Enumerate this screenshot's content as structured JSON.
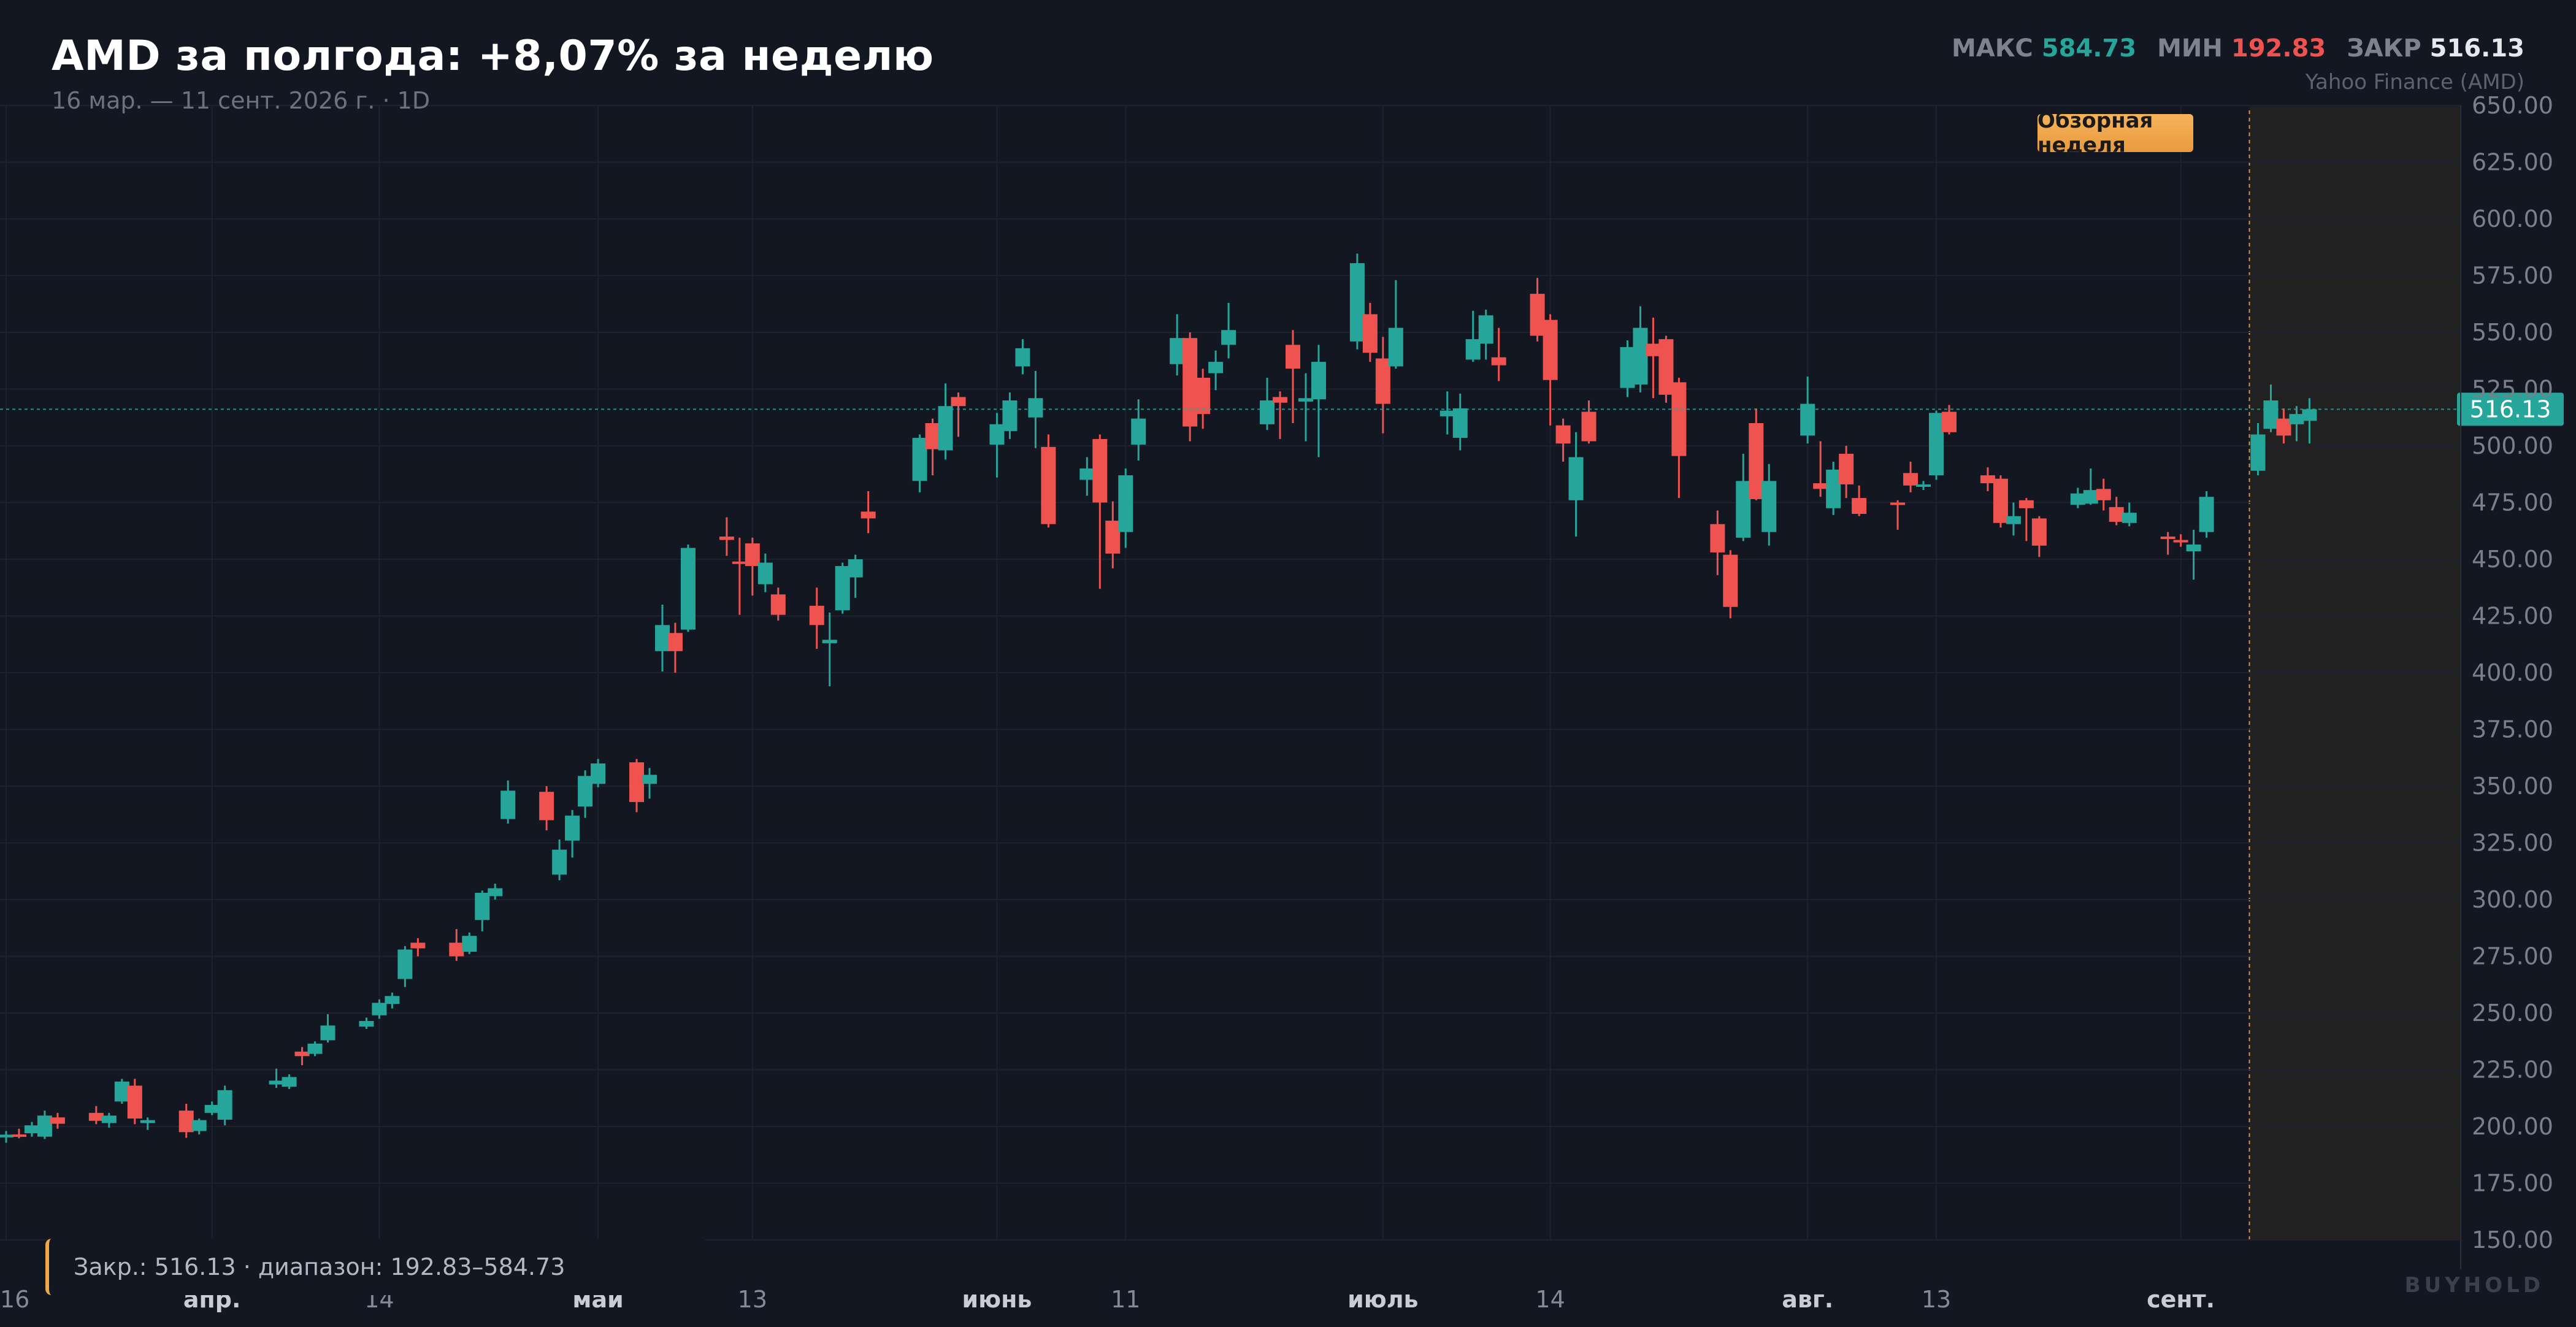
{
  "header": {
    "title": "AMD за полгода: +8,07% за неделю",
    "subtitle": "16 мар. — 11 сент. 2026 г. · 1D",
    "stats": {
      "max_label": "МАКС",
      "max_value": "584.73",
      "min_label": "МИН",
      "min_value": "192.83",
      "close_label": "ЗАКР",
      "close_value": "516.13"
    },
    "source": "Yahoo Finance (AMD)"
  },
  "highlight": {
    "label": "Обзорная неделя",
    "start_date": "2026-09-07",
    "end_date": "2026-09-11"
  },
  "footer": {
    "summary": "Закр.: 516.13 · диапазон: 192.83–584.73",
    "brand": "BUYHOLD"
  },
  "colors": {
    "background": "#131722",
    "up": "#26a69a",
    "down": "#ef5350",
    "grid": "#1e2230",
    "accent": "#f0a746",
    "axis_text": "#7a7f8c"
  },
  "chart_data": {
    "type": "candlestick",
    "ticker": "AMD",
    "interval": "1D",
    "ylim": [
      150,
      650
    ],
    "y_ticks": [
      "150.00",
      "175.00",
      "200.00",
      "225.00",
      "250.00",
      "275.00",
      "300.00",
      "325.00",
      "350.00",
      "375.00",
      "400.00",
      "425.00",
      "450.00",
      "475.00",
      "500.00",
      "525.00",
      "550.00",
      "575.00",
      "600.00",
      "625.00",
      "650.00"
    ],
    "x_ticks": [
      {
        "date": "2026-03-16",
        "label": "16",
        "bold": false
      },
      {
        "date": "2026-04-01",
        "label": "апр.",
        "bold": true
      },
      {
        "date": "2026-04-14",
        "label": "14",
        "bold": false
      },
      {
        "date": "2026-05-01",
        "label": "май",
        "bold": true
      },
      {
        "date": "2026-05-13",
        "label": "13",
        "bold": false
      },
      {
        "date": "2026-06-01",
        "label": "июнь",
        "bold": true
      },
      {
        "date": "2026-06-11",
        "label": "11",
        "bold": false
      },
      {
        "date": "2026-07-01",
        "label": "июль",
        "bold": true
      },
      {
        "date": "2026-07-14",
        "label": "14",
        "bold": false
      },
      {
        "date": "2026-08-03",
        "label": "авг.",
        "bold": true
      },
      {
        "date": "2026-08-13",
        "label": "13",
        "bold": false
      },
      {
        "date": "2026-09-01",
        "label": "сент.",
        "bold": true
      }
    ],
    "last_price": 516.13,
    "last_price_label": "516.13",
    "candles": [
      {
        "d": "2026-03-16",
        "o": 195.2,
        "h": 198.0,
        "l": 192.83,
        "c": 196.4
      },
      {
        "d": "2026-03-17",
        "o": 196.5,
        "h": 199.0,
        "l": 194.8,
        "c": 196.2
      },
      {
        "d": "2026-03-18",
        "o": 197.0,
        "h": 202.0,
        "l": 195.5,
        "c": 200.5
      },
      {
        "d": "2026-03-19",
        "o": 195.5,
        "h": 207.0,
        "l": 194.5,
        "c": 204.8
      },
      {
        "d": "2026-03-20",
        "o": 204.0,
        "h": 206.0,
        "l": 199.0,
        "c": 201.2
      },
      {
        "d": "2026-03-23",
        "o": 206.0,
        "h": 209.0,
        "l": 201.0,
        "c": 202.5
      },
      {
        "d": "2026-03-24",
        "o": 201.5,
        "h": 206.0,
        "l": 199.5,
        "c": 204.8
      },
      {
        "d": "2026-03-25",
        "o": 211.0,
        "h": 221.0,
        "l": 210.0,
        "c": 219.8
      },
      {
        "d": "2026-03-26",
        "o": 218.0,
        "h": 221.0,
        "l": 201.0,
        "c": 203.5
      },
      {
        "d": "2026-03-27",
        "o": 201.5,
        "h": 204.0,
        "l": 198.5,
        "c": 202.8
      },
      {
        "d": "2026-03-30",
        "o": 207.0,
        "h": 210.0,
        "l": 195.0,
        "c": 197.5
      },
      {
        "d": "2026-03-31",
        "o": 198.0,
        "h": 203.5,
        "l": 196.5,
        "c": 202.8
      },
      {
        "d": "2026-04-01",
        "o": 206.0,
        "h": 211.0,
        "l": 205.0,
        "c": 209.5
      },
      {
        "d": "2026-04-02",
        "o": 203.0,
        "h": 218.0,
        "l": 200.5,
        "c": 216.0
      },
      {
        "d": "2026-04-06",
        "o": 218.5,
        "h": 225.5,
        "l": 217.0,
        "c": 220.2
      },
      {
        "d": "2026-04-07",
        "o": 217.5,
        "h": 223.0,
        "l": 216.5,
        "c": 221.8
      },
      {
        "d": "2026-04-08",
        "o": 233.0,
        "h": 235.0,
        "l": 227.0,
        "c": 231.0
      },
      {
        "d": "2026-04-09",
        "o": 232.0,
        "h": 237.5,
        "l": 231.0,
        "c": 236.5
      },
      {
        "d": "2026-04-10",
        "o": 238.0,
        "h": 249.5,
        "l": 237.0,
        "c": 244.5
      },
      {
        "d": "2026-04-13",
        "o": 244.0,
        "h": 248.0,
        "l": 243.0,
        "c": 246.5
      },
      {
        "d": "2026-04-14",
        "o": 249.0,
        "h": 256.0,
        "l": 247.5,
        "c": 254.5
      },
      {
        "d": "2026-04-15",
        "o": 254.0,
        "h": 259.0,
        "l": 252.0,
        "c": 257.5
      },
      {
        "d": "2026-04-16",
        "o": 265.0,
        "h": 279.5,
        "l": 261.5,
        "c": 278.0
      },
      {
        "d": "2026-04-17",
        "o": 281.0,
        "h": 283.0,
        "l": 275.0,
        "c": 278.5
      },
      {
        "d": "2026-04-20",
        "o": 281.0,
        "h": 287.0,
        "l": 273.0,
        "c": 275.0
      },
      {
        "d": "2026-04-21",
        "o": 277.0,
        "h": 285.5,
        "l": 276.0,
        "c": 284.0
      },
      {
        "d": "2026-04-22",
        "o": 291.0,
        "h": 304.0,
        "l": 286.0,
        "c": 303.0
      },
      {
        "d": "2026-04-23",
        "o": 301.5,
        "h": 307.0,
        "l": 300.0,
        "c": 305.0
      },
      {
        "d": "2026-04-24",
        "o": 335.5,
        "h": 352.5,
        "l": 333.5,
        "c": 348.0
      },
      {
        "d": "2026-04-27",
        "o": 347.5,
        "h": 350.0,
        "l": 330.5,
        "c": 335.0
      },
      {
        "d": "2026-04-28",
        "o": 311.0,
        "h": 326.5,
        "l": 308.5,
        "c": 322.0
      },
      {
        "d": "2026-04-29",
        "o": 326.0,
        "h": 339.5,
        "l": 318.5,
        "c": 337.0
      },
      {
        "d": "2026-04-30",
        "o": 341.0,
        "h": 357.0,
        "l": 336.0,
        "c": 354.5
      },
      {
        "d": "2026-05-01",
        "o": 351.0,
        "h": 362.0,
        "l": 349.5,
        "c": 360.0
      },
      {
        "d": "2026-05-04",
        "o": 360.5,
        "h": 362.0,
        "l": 338.5,
        "c": 343.0
      },
      {
        "d": "2026-05-05",
        "o": 351.0,
        "h": 358.0,
        "l": 344.5,
        "c": 355.0
      },
      {
        "d": "2026-05-06",
        "o": 409.5,
        "h": 430.0,
        "l": 400.5,
        "c": 421.0
      },
      {
        "d": "2026-05-07",
        "o": 417.5,
        "h": 422.0,
        "l": 400.0,
        "c": 409.5
      },
      {
        "d": "2026-05-08",
        "o": 419.0,
        "h": 456.5,
        "l": 418.0,
        "c": 455.0
      },
      {
        "d": "2026-05-11",
        "o": 460.0,
        "h": 468.5,
        "l": 451.5,
        "c": 458.5
      },
      {
        "d": "2026-05-12",
        "o": 449.0,
        "h": 459.5,
        "l": 425.5,
        "c": 448.5
      },
      {
        "d": "2026-05-13",
        "o": 457.0,
        "h": 459.5,
        "l": 434.0,
        "c": 447.0
      },
      {
        "d": "2026-05-14",
        "o": 439.0,
        "h": 452.5,
        "l": 435.5,
        "c": 448.5
      },
      {
        "d": "2026-05-15",
        "o": 434.5,
        "h": 437.5,
        "l": 423.0,
        "c": 425.5
      },
      {
        "d": "2026-05-18",
        "o": 429.5,
        "h": 437.5,
        "l": 410.5,
        "c": 421.0
      },
      {
        "d": "2026-05-19",
        "o": 413.0,
        "h": 426.5,
        "l": 394.0,
        "c": 414.5
      },
      {
        "d": "2026-05-20",
        "o": 427.5,
        "h": 448.5,
        "l": 426.0,
        "c": 447.0
      },
      {
        "d": "2026-05-21",
        "o": 442.0,
        "h": 452.0,
        "l": 433.0,
        "c": 450.0
      },
      {
        "d": "2026-05-22",
        "o": 471.0,
        "h": 480.0,
        "l": 461.5,
        "c": 468.0
      },
      {
        "d": "2026-05-26",
        "o": 484.5,
        "h": 505.0,
        "l": 479.5,
        "c": 503.5
      },
      {
        "d": "2026-05-27",
        "o": 510.0,
        "h": 512.0,
        "l": 487.0,
        "c": 498.5
      },
      {
        "d": "2026-05-28",
        "o": 498.0,
        "h": 527.5,
        "l": 494.0,
        "c": 517.5
      },
      {
        "d": "2026-05-29",
        "o": 521.5,
        "h": 523.5,
        "l": 504.0,
        "c": 517.5
      },
      {
        "d": "2026-06-01",
        "o": 500.5,
        "h": 514.5,
        "l": 486.0,
        "c": 509.5
      },
      {
        "d": "2026-06-02",
        "o": 506.5,
        "h": 523.5,
        "l": 503.0,
        "c": 520.0
      },
      {
        "d": "2026-06-03",
        "o": 535.0,
        "h": 547.0,
        "l": 531.5,
        "c": 543.0
      },
      {
        "d": "2026-06-04",
        "o": 512.5,
        "h": 533.0,
        "l": 499.0,
        "c": 521.0
      },
      {
        "d": "2026-06-05",
        "o": 499.5,
        "h": 505.0,
        "l": 464.0,
        "c": 465.5
      },
      {
        "d": "2026-06-08",
        "o": 485.0,
        "h": 495.0,
        "l": 478.0,
        "c": 490.0
      },
      {
        "d": "2026-06-09",
        "o": 503.0,
        "h": 505.0,
        "l": 437.0,
        "c": 475.0
      },
      {
        "d": "2026-06-10",
        "o": 467.0,
        "h": 475.5,
        "l": 446.0,
        "c": 452.5
      },
      {
        "d": "2026-06-11",
        "o": 462.0,
        "h": 490.0,
        "l": 455.0,
        "c": 487.0
      },
      {
        "d": "2026-06-12",
        "o": 500.5,
        "h": 520.5,
        "l": 493.5,
        "c": 512.0
      },
      {
        "d": "2026-06-15",
        "o": 536.0,
        "h": 558.0,
        "l": 531.0,
        "c": 547.5
      },
      {
        "d": "2026-06-16",
        "o": 547.5,
        "h": 550.0,
        "l": 502.0,
        "c": 508.5
      },
      {
        "d": "2026-06-17",
        "o": 530.0,
        "h": 534.0,
        "l": 507.5,
        "c": 514.0
      },
      {
        "d": "2026-06-18",
        "o": 532.0,
        "h": 542.0,
        "l": 524.5,
        "c": 537.0
      },
      {
        "d": "2026-06-19",
        "o": 544.5,
        "h": 563.0,
        "l": 538.5,
        "c": 551.0
      },
      {
        "d": "2026-06-22",
        "o": 509.5,
        "h": 530.0,
        "l": 507.0,
        "c": 520.0
      },
      {
        "d": "2026-06-23",
        "o": 521.5,
        "h": 524.0,
        "l": 503.0,
        "c": 519.0
      },
      {
        "d": "2026-06-24",
        "o": 544.5,
        "h": 551.0,
        "l": 510.0,
        "c": 534.0
      },
      {
        "d": "2026-06-25",
        "o": 519.5,
        "h": 532.0,
        "l": 502.0,
        "c": 521.0
      },
      {
        "d": "2026-06-26",
        "o": 520.5,
        "h": 544.5,
        "l": 495.0,
        "c": 537.0
      },
      {
        "d": "2026-06-29",
        "o": 546.0,
        "h": 584.73,
        "l": 542.5,
        "c": 580.5
      },
      {
        "d": "2026-06-30",
        "o": 558.0,
        "h": 563.0,
        "l": 537.0,
        "c": 541.0
      },
      {
        "d": "2026-07-01",
        "o": 538.5,
        "h": 548.0,
        "l": 505.5,
        "c": 518.5
      },
      {
        "d": "2026-07-02",
        "o": 535.0,
        "h": 573.0,
        "l": 534.0,
        "c": 552.0
      },
      {
        "d": "2026-07-06",
        "o": 513.0,
        "h": 524.0,
        "l": 505.0,
        "c": 515.5
      },
      {
        "d": "2026-07-07",
        "o": 503.5,
        "h": 523.0,
        "l": 498.0,
        "c": 516.5
      },
      {
        "d": "2026-07-08",
        "o": 538.0,
        "h": 559.5,
        "l": 537.0,
        "c": 547.0
      },
      {
        "d": "2026-07-09",
        "o": 545.0,
        "h": 560.0,
        "l": 538.0,
        "c": 557.5
      },
      {
        "d": "2026-07-10",
        "o": 539.0,
        "h": 552.0,
        "l": 528.5,
        "c": 535.5
      },
      {
        "d": "2026-07-13",
        "o": 567.0,
        "h": 574.0,
        "l": 546.0,
        "c": 548.5
      },
      {
        "d": "2026-07-14",
        "o": 555.5,
        "h": 558.0,
        "l": 509.0,
        "c": 529.0
      },
      {
        "d": "2026-07-15",
        "o": 509.0,
        "h": 512.0,
        "l": 493.0,
        "c": 501.0
      },
      {
        "d": "2026-07-16",
        "o": 476.0,
        "h": 506.0,
        "l": 460.0,
        "c": 495.0
      },
      {
        "d": "2026-07-17",
        "o": 515.0,
        "h": 520.0,
        "l": 501.0,
        "c": 502.0
      },
      {
        "d": "2026-07-20",
        "o": 525.5,
        "h": 546.5,
        "l": 521.5,
        "c": 543.5
      },
      {
        "d": "2026-07-21",
        "o": 527.0,
        "h": 561.5,
        "l": 523.5,
        "c": 552.0
      },
      {
        "d": "2026-07-22",
        "o": 545.0,
        "h": 556.5,
        "l": 521.0,
        "c": 539.5
      },
      {
        "d": "2026-07-23",
        "o": 547.0,
        "h": 548.5,
        "l": 519.0,
        "c": 522.5
      },
      {
        "d": "2026-07-24",
        "o": 528.0,
        "h": 530.0,
        "l": 477.0,
        "c": 495.5
      },
      {
        "d": "2026-07-27",
        "o": 465.5,
        "h": 471.5,
        "l": 443.0,
        "c": 453.0
      },
      {
        "d": "2026-07-28",
        "o": 452.0,
        "h": 454.0,
        "l": 424.0,
        "c": 429.0
      },
      {
        "d": "2026-07-29",
        "o": 459.5,
        "h": 496.5,
        "l": 458.0,
        "c": 484.5
      },
      {
        "d": "2026-07-30",
        "o": 510.0,
        "h": 516.5,
        "l": 476.0,
        "c": 476.5
      },
      {
        "d": "2026-07-31",
        "o": 462.0,
        "h": 492.0,
        "l": 456.0,
        "c": 484.5
      },
      {
        "d": "2026-08-03",
        "o": 504.5,
        "h": 530.5,
        "l": 501.0,
        "c": 518.5
      },
      {
        "d": "2026-08-04",
        "o": 483.5,
        "h": 502.0,
        "l": 477.5,
        "c": 481.0
      },
      {
        "d": "2026-08-05",
        "o": 472.5,
        "h": 493.0,
        "l": 469.5,
        "c": 489.5
      },
      {
        "d": "2026-08-06",
        "o": 496.5,
        "h": 500.0,
        "l": 477.0,
        "c": 483.0
      },
      {
        "d": "2026-08-07",
        "o": 477.0,
        "h": 482.5,
        "l": 469.0,
        "c": 470.0
      },
      {
        "d": "2026-08-10",
        "o": 475.0,
        "h": 476.0,
        "l": 463.0,
        "c": 474.5
      },
      {
        "d": "2026-08-11",
        "o": 488.0,
        "h": 493.0,
        "l": 479.5,
        "c": 482.5
      },
      {
        "d": "2026-08-12",
        "o": 482.0,
        "h": 484.5,
        "l": 480.5,
        "c": 483.0
      },
      {
        "d": "2026-08-13",
        "o": 487.0,
        "h": 515.5,
        "l": 485.0,
        "c": 514.5
      },
      {
        "d": "2026-08-14",
        "o": 515.0,
        "h": 518.0,
        "l": 505.0,
        "c": 506.0
      },
      {
        "d": "2026-08-17",
        "o": 487.0,
        "h": 490.5,
        "l": 480.0,
        "c": 483.5
      },
      {
        "d": "2026-08-18",
        "o": 485.5,
        "h": 487.0,
        "l": 464.0,
        "c": 466.0
      },
      {
        "d": "2026-08-19",
        "o": 465.5,
        "h": 475.0,
        "l": 460.5,
        "c": 469.0
      },
      {
        "d": "2026-08-20",
        "o": 476.0,
        "h": 477.0,
        "l": 458.0,
        "c": 472.5
      },
      {
        "d": "2026-08-21",
        "o": 468.0,
        "h": 469.0,
        "l": 451.0,
        "c": 456.0
      },
      {
        "d": "2026-08-24",
        "o": 474.0,
        "h": 481.5,
        "l": 472.5,
        "c": 479.0
      },
      {
        "d": "2026-08-25",
        "o": 474.5,
        "h": 490.0,
        "l": 474.0,
        "c": 480.5
      },
      {
        "d": "2026-08-26",
        "o": 481.0,
        "h": 485.5,
        "l": 471.5,
        "c": 476.0
      },
      {
        "d": "2026-08-27",
        "o": 473.0,
        "h": 477.5,
        "l": 465.0,
        "c": 466.5
      },
      {
        "d": "2026-08-28",
        "o": 466.0,
        "h": 475.0,
        "l": 464.5,
        "c": 470.5
      },
      {
        "d": "2026-08-31",
        "o": 460.0,
        "h": 462.0,
        "l": 452.0,
        "c": 459.0
      },
      {
        "d": "2026-09-01",
        "o": 458.5,
        "h": 461.0,
        "l": 455.5,
        "c": 457.5
      },
      {
        "d": "2026-09-02",
        "o": 453.5,
        "h": 463.0,
        "l": 441.0,
        "c": 456.5
      },
      {
        "d": "2026-09-03",
        "o": 462.0,
        "h": 480.0,
        "l": 459.5,
        "c": 477.5
      },
      {
        "d": "2026-09-07",
        "o": 489.0,
        "h": 510.0,
        "l": 487.0,
        "c": 505.0
      },
      {
        "d": "2026-09-08",
        "o": 507.5,
        "h": 527.0,
        "l": 506.0,
        "c": 520.0
      },
      {
        "d": "2026-09-09",
        "o": 512.0,
        "h": 516.5,
        "l": 501.0,
        "c": 504.5
      },
      {
        "d": "2026-09-10",
        "o": 509.5,
        "h": 517.5,
        "l": 502.0,
        "c": 514.0
      },
      {
        "d": "2026-09-11",
        "o": 511.0,
        "h": 521.0,
        "l": 501.0,
        "c": 516.13
      }
    ]
  }
}
